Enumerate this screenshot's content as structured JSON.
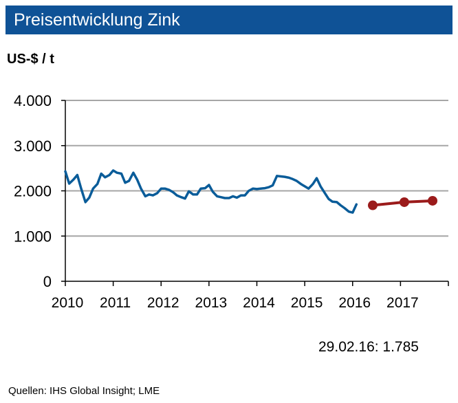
{
  "header": {
    "title": "Preisentwicklung Zink"
  },
  "unit_label": "US-$ / t",
  "note": "29.02.16: 1.785",
  "source": "Quellen: IHS Global Insight; LME",
  "colors": {
    "title_bg": "#0f5296",
    "history_line": "#0a5c99",
    "forecast_line": "#9b1b1b"
  },
  "chart_data": {
    "type": "line",
    "ylabel": "US-$ / t",
    "ylim": [
      0,
      4000
    ],
    "yticks": [
      0,
      1000,
      2000,
      3000,
      4000
    ],
    "ytick_labels": [
      "0",
      "1.000",
      "2.000",
      "3.000",
      "4.000"
    ],
    "xlim": [
      2010,
      2018
    ],
    "xtick_labels": [
      "2010",
      "2011",
      "2012",
      "2013",
      "2014",
      "2015",
      "2016",
      "2017"
    ],
    "grid": "horizontal",
    "series": [
      {
        "kind": "history",
        "x": [
          2010.0,
          2010.08,
          2010.17,
          2010.25,
          2010.33,
          2010.42,
          2010.5,
          2010.58,
          2010.67,
          2010.75,
          2010.83,
          2010.92,
          2011.0,
          2011.08,
          2011.17,
          2011.25,
          2011.33,
          2011.42,
          2011.5,
          2011.58,
          2011.67,
          2011.75,
          2011.83,
          2011.92,
          2012.0,
          2012.08,
          2012.17,
          2012.25,
          2012.33,
          2012.42,
          2012.5,
          2012.58,
          2012.67,
          2012.75,
          2012.83,
          2012.92,
          2013.0,
          2013.08,
          2013.17,
          2013.25,
          2013.33,
          2013.42,
          2013.5,
          2013.58,
          2013.67,
          2013.75,
          2013.83,
          2013.92,
          2014.0,
          2014.08,
          2014.17,
          2014.25,
          2014.33,
          2014.42,
          2014.5,
          2014.58,
          2014.67,
          2014.75,
          2014.83,
          2014.92,
          2015.0,
          2015.08,
          2015.17,
          2015.25,
          2015.33,
          2015.42,
          2015.5,
          2015.58,
          2015.67,
          2015.75,
          2015.83,
          2015.92,
          2016.0,
          2016.08
        ],
        "y": [
          2430,
          2160,
          2250,
          2350,
          2050,
          1750,
          1850,
          2050,
          2150,
          2380,
          2300,
          2350,
          2450,
          2400,
          2380,
          2180,
          2220,
          2400,
          2250,
          2050,
          1880,
          1920,
          1900,
          1950,
          2050,
          2050,
          2020,
          1970,
          1900,
          1860,
          1830,
          1990,
          1920,
          1920,
          2050,
          2060,
          2130,
          1980,
          1880,
          1860,
          1840,
          1840,
          1880,
          1850,
          1900,
          1900,
          2000,
          2050,
          2040,
          2050,
          2060,
          2080,
          2120,
          2330,
          2320,
          2310,
          2290,
          2260,
          2220,
          2150,
          2100,
          2050,
          2150,
          2280,
          2100,
          1950,
          1820,
          1760,
          1750,
          1680,
          1620,
          1540,
          1520,
          1700
        ]
      },
      {
        "kind": "forecast",
        "x": [
          2016.42,
          2017.08,
          2017.67
        ],
        "y": [
          1680,
          1750,
          1780
        ]
      }
    ]
  }
}
